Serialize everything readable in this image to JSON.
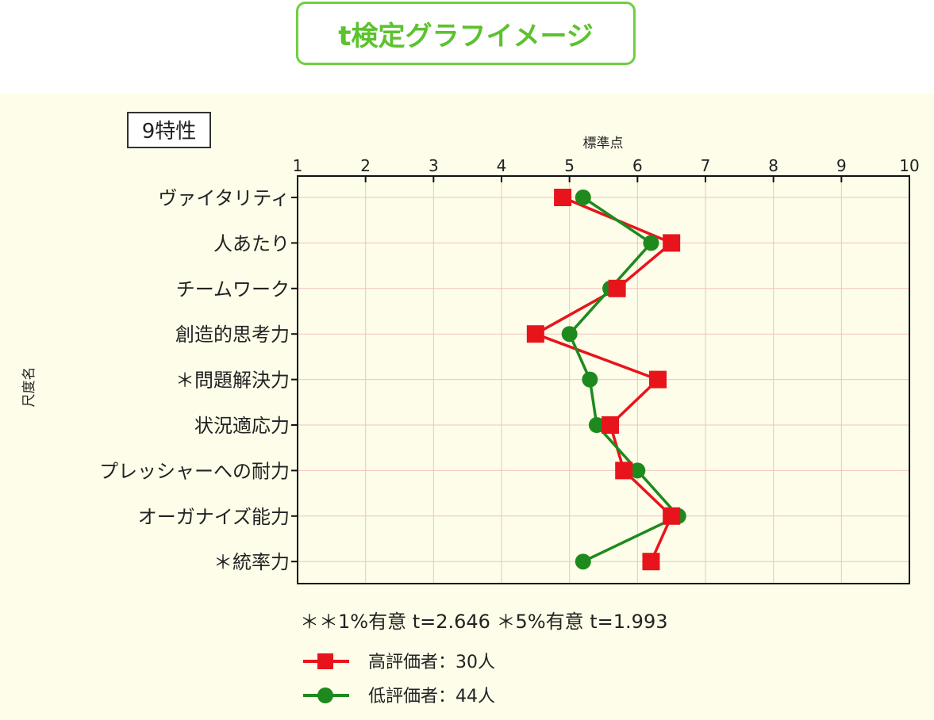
{
  "banner": {
    "title": "t検定グラフイメージ"
  },
  "colors": {
    "banner_accent": "#5cc22e",
    "panel_bg": "#fdfde9",
    "series_high": "#e8141c",
    "series_low": "#1e8a1e",
    "grid": "#f2c2c2"
  },
  "chart_data": {
    "type": "line",
    "orientation": "horizontal",
    "panel_label": "9特性",
    "xlabel": "標準点",
    "ylabel": "尺度名",
    "xlim": [
      1,
      10
    ],
    "x_ticks": [
      "1",
      "2",
      "3",
      "4",
      "5",
      "6",
      "7",
      "8",
      "9",
      "10"
    ],
    "categories": [
      "ヴァイタリティ",
      "人あたり",
      "チームワーク",
      "創造的思考力",
      "＊問題解決力",
      "状況適応力",
      "プレッシャーへの耐力",
      "オーガナイズ能力",
      "＊統率力"
    ],
    "series": [
      {
        "name": "高評価者：30人",
        "marker": "square",
        "values": [
          4.9,
          6.5,
          5.7,
          4.5,
          6.3,
          5.6,
          5.8,
          6.5,
          6.2
        ]
      },
      {
        "name": "低評価者：44人",
        "marker": "circle",
        "values": [
          5.2,
          6.2,
          5.6,
          5.0,
          5.3,
          5.4,
          6.0,
          6.6,
          5.2
        ]
      }
    ],
    "grid": true,
    "legend_position": "bottom-left",
    "annotation": "＊＊1%有意 t=2.646 ＊5%有意 t=1.993"
  }
}
